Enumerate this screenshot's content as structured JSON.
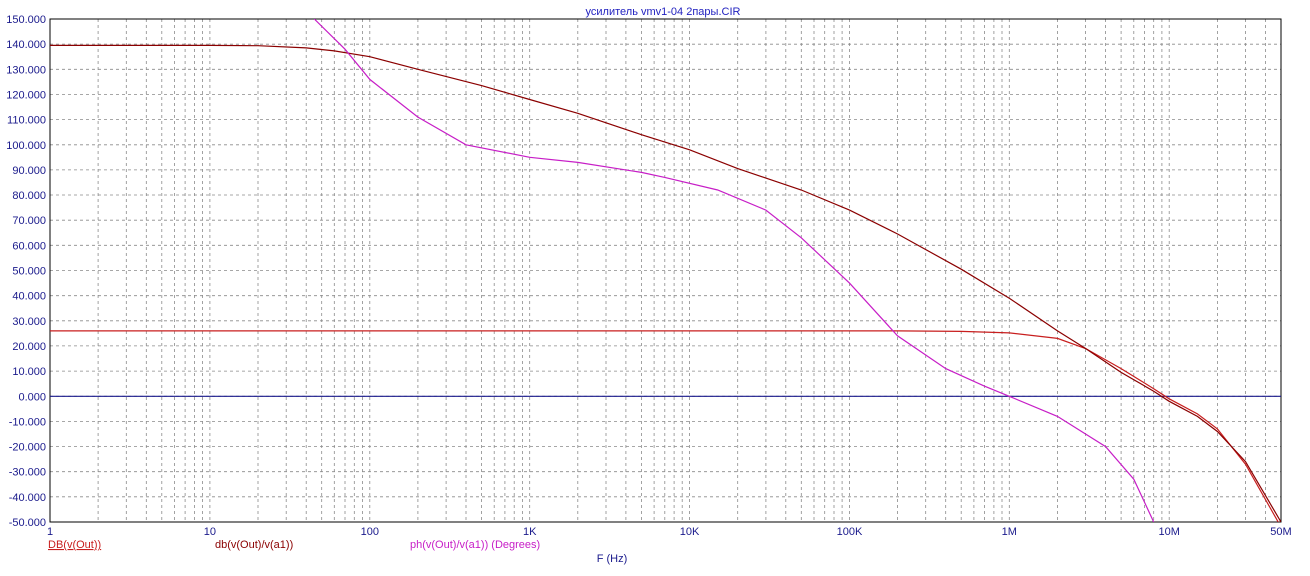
{
  "chart_data": {
    "type": "line",
    "title": "усилитель vmv1-04 2пары.CIR",
    "xlabel": "F (Hz)",
    "x_scale": "log",
    "xlim": [
      1,
      50000000
    ],
    "ylim": [
      -50,
      150
    ],
    "grid": true,
    "x_tick_values": [
      1,
      10,
      100,
      1000,
      10000,
      100000,
      1000000,
      10000000,
      50000000
    ],
    "x_tick_labels": [
      "1",
      "10",
      "100",
      "1K",
      "10K",
      "100K",
      "1M",
      "10M",
      "50M"
    ],
    "y_tick_values": [
      150,
      140,
      130,
      120,
      110,
      100,
      90,
      80,
      70,
      60,
      50,
      40,
      30,
      20,
      10,
      0,
      -10,
      -20,
      -30,
      -40,
      -50
    ],
    "y_tick_labels": [
      "150.000",
      "140.000",
      "130.000",
      "120.000",
      "110.000",
      "100.000",
      "90.000",
      "80.000",
      "70.000",
      "60.000",
      "50.000",
      "40.000",
      "30.000",
      "20.000",
      "10.000",
      "0.000",
      "-10.000",
      "-20.000",
      "-30.000",
      "-40.000",
      "-50.000"
    ],
    "zero_line": 0,
    "series": [
      {
        "name": "DB(v(Out))",
        "color": "#c81e1e",
        "x": [
          1,
          10,
          20,
          40,
          60,
          100,
          200,
          500,
          1000,
          2000,
          5000,
          10000,
          20000,
          50000,
          100000,
          200000,
          500000,
          1000000,
          2000000,
          3000000,
          5000000,
          8000000,
          10000000,
          15000000,
          20000000,
          30000000,
          50000000
        ],
        "y": [
          26,
          26,
          26,
          26,
          26,
          26,
          26,
          26,
          26,
          26,
          26,
          26,
          26,
          26,
          26,
          26,
          25.8,
          25.2,
          23,
          19,
          11,
          3,
          -1,
          -7,
          -13,
          -27,
          -52
        ]
      },
      {
        "name": "db(v(Out)/v(a1))",
        "color": "#8b0000",
        "x": [
          1,
          10,
          20,
          40,
          60,
          100,
          200,
          500,
          1000,
          2000,
          5000,
          10000,
          20000,
          50000,
          100000,
          200000,
          500000,
          1000000,
          2000000,
          3000000,
          5000000,
          8000000,
          10000000,
          15000000,
          20000000,
          30000000,
          50000000
        ],
        "y": [
          139.5,
          139.5,
          139.4,
          138.5,
          137.3,
          135,
          130,
          123.5,
          118,
          112.5,
          104,
          98,
          90.5,
          82,
          74,
          64.5,
          50.5,
          39,
          26,
          19,
          9.5,
          2,
          -2,
          -8,
          -14,
          -26,
          -50
        ]
      },
      {
        "name": "ph(v(Out)/v(a1)) (Degrees)",
        "color": "#c71ec7",
        "x": [
          45,
          70,
          100,
          200,
          400,
          1000,
          2000,
          5000,
          7000,
          15000,
          30000,
          50000,
          100000,
          200000,
          400000,
          700000,
          1000000,
          2000000,
          4000000,
          6000000,
          8000000
        ],
        "y": [
          150,
          138,
          126,
          111,
          100,
          95,
          93,
          89,
          87,
          82,
          74,
          63,
          45,
          24,
          11,
          4,
          0,
          -8,
          -20,
          -33,
          -50
        ]
      }
    ]
  }
}
